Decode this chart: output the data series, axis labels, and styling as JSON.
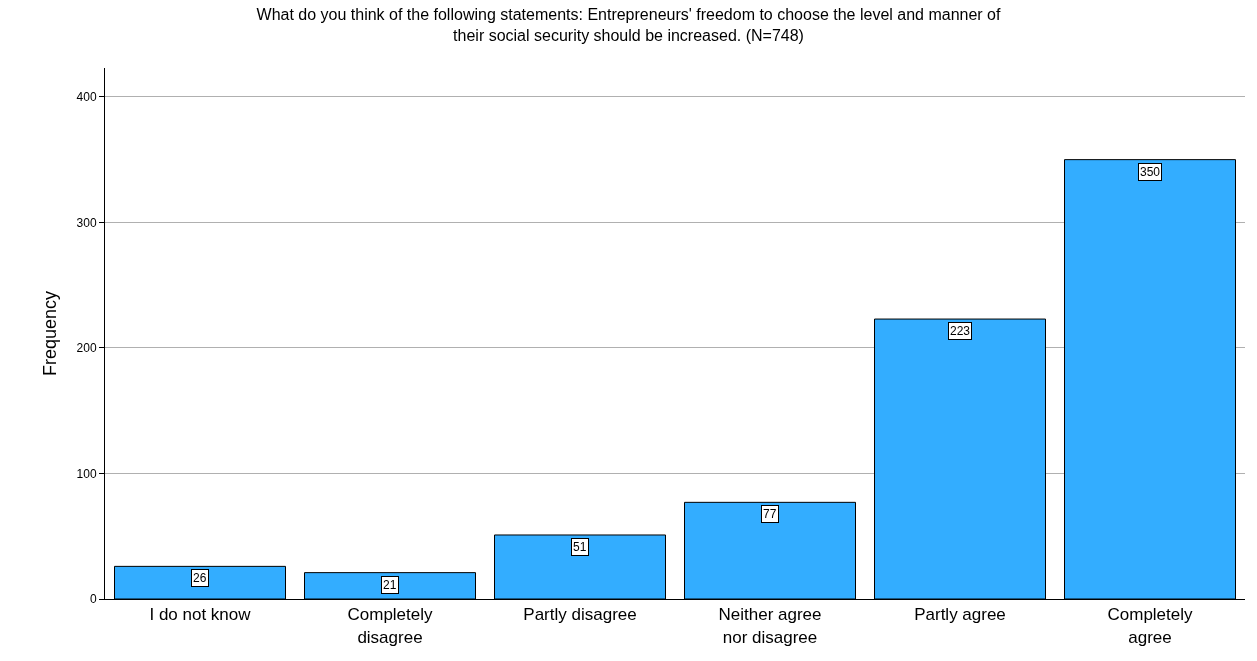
{
  "chart_data": {
    "type": "bar",
    "title": "What do you think of the following statements: Entrepreneurs' freedom to choose the level and manner of their social security should be increased. (N=748)",
    "ylabel": "Frequency",
    "categories": [
      "I do not know",
      "Completely disagree",
      "Partly disagree",
      "Neither agree nor disagree",
      "Partly agree",
      "Completely agree"
    ],
    "values": [
      26,
      21,
      51,
      77,
      223,
      350
    ],
    "color": "#33adff",
    "ylim": [
      0,
      423
    ],
    "yticks": [
      0,
      100,
      200,
      300,
      400
    ],
    "grid": "y",
    "data_labels": true,
    "legend": false
  }
}
